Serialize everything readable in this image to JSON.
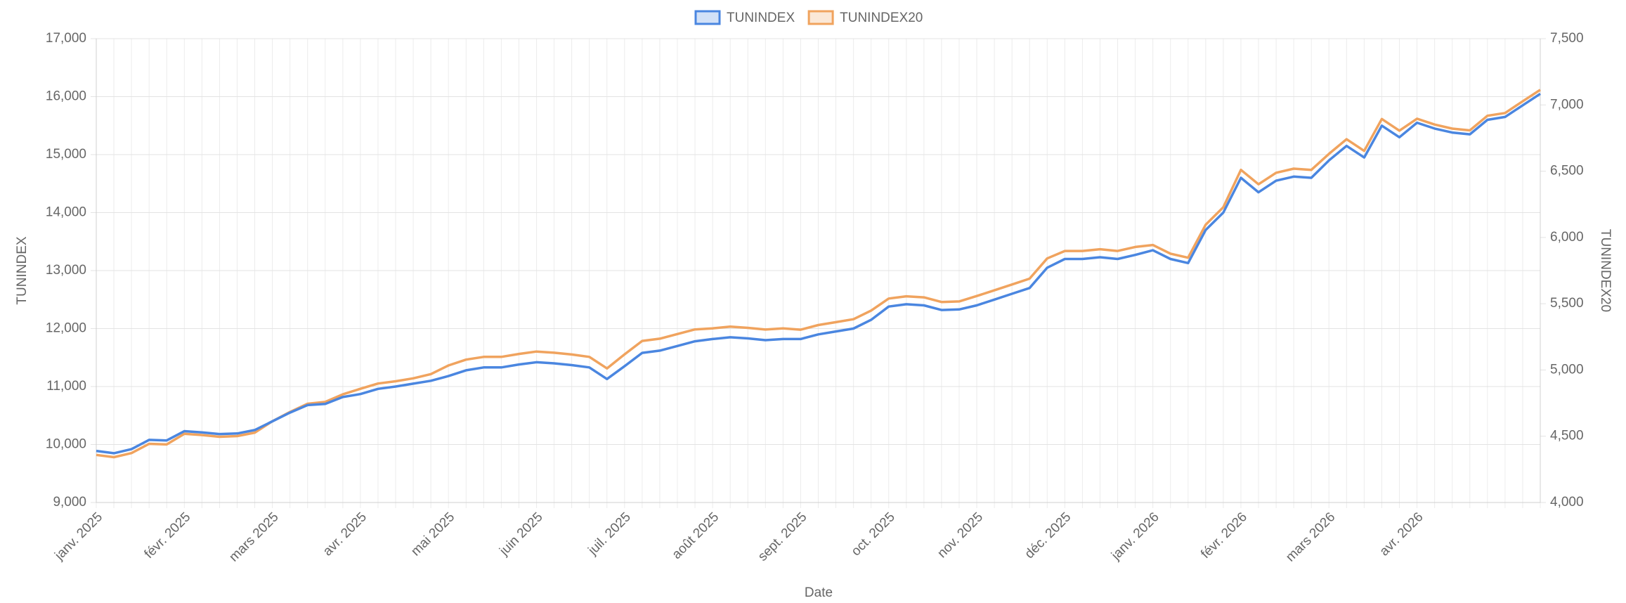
{
  "chart_data": {
    "type": "line",
    "x_label": "Date",
    "y_label": "TUNINDEX",
    "y2_label": "TUNINDEX20",
    "legend": "top",
    "grid": true,
    "categories": [
      "janv. 2025",
      null,
      null,
      null,
      null,
      "févr. 2025",
      null,
      null,
      null,
      null,
      "mars 2025",
      null,
      null,
      null,
      null,
      "avr. 2025",
      null,
      null,
      null,
      null,
      "mai 2025",
      null,
      null,
      null,
      null,
      "juin 2025",
      null,
      null,
      null,
      null,
      "juil. 2025",
      null,
      null,
      null,
      null,
      "août 2025",
      null,
      null,
      null,
      null,
      "sept. 2025",
      null,
      null,
      null,
      null,
      "oct. 2025",
      null,
      null,
      null,
      null,
      "nov. 2025",
      null,
      null,
      null,
      null,
      "déc. 2025",
      null,
      null,
      null,
      null,
      "janv. 2026",
      null,
      null,
      null,
      null,
      "févr. 2026",
      null,
      null,
      null,
      null,
      "mars 2026",
      null,
      null,
      null,
      null,
      "avr. 2026",
      null,
      null,
      null,
      null,
      null,
      null,
      null
    ],
    "ylim": [
      9000,
      17000
    ],
    "yticks": [
      {
        "value": 9000,
        "label": "9,000"
      },
      {
        "value": 10000,
        "label": "10,000"
      },
      {
        "value": 11000,
        "label": "11,000"
      },
      {
        "value": 12000,
        "label": "12,000"
      },
      {
        "value": 13000,
        "label": "13,000"
      },
      {
        "value": 14000,
        "label": "14,000"
      },
      {
        "value": 15000,
        "label": "15,000"
      },
      {
        "value": 16000,
        "label": "16,000"
      },
      {
        "value": 17000,
        "label": "17,000"
      }
    ],
    "y2lim": [
      4000,
      7500
    ],
    "y2ticks": [
      {
        "value": 4000,
        "label": "4,000"
      },
      {
        "value": 4500,
        "label": "4,500"
      },
      {
        "value": 5000,
        "label": "5,000"
      },
      {
        "value": 5500,
        "label": "5,500"
      },
      {
        "value": 6000,
        "label": "6,000"
      },
      {
        "value": 6500,
        "label": "6,500"
      },
      {
        "value": 7000,
        "label": "7,000"
      },
      {
        "value": 7500,
        "label": "7,500"
      }
    ],
    "series": [
      {
        "name": "TUNINDEX",
        "color": "#4a86e0",
        "axis": "y",
        "values": [
          9890,
          9850,
          9920,
          10080,
          10070,
          10230,
          10210,
          10180,
          10190,
          10250,
          10400,
          10550,
          10680,
          10700,
          10820,
          10870,
          10960,
          11000,
          11050,
          11100,
          11180,
          11280,
          11330,
          11330,
          11380,
          11420,
          11400,
          11370,
          11330,
          11130,
          11350,
          11580,
          11620,
          11700,
          11780,
          11820,
          11850,
          11830,
          11800,
          11820,
          11820,
          11900,
          11950,
          12000,
          12150,
          12380,
          12420,
          12400,
          12320,
          12330,
          12400,
          12500,
          12600,
          12700,
          13050,
          13200,
          13200,
          13230,
          13200,
          13270,
          13350,
          13200,
          13130,
          13700,
          14000,
          14600,
          14350,
          14550,
          14620,
          14600,
          14900,
          15150,
          14950,
          15500,
          15300,
          15550,
          15450,
          15380,
          15350,
          15600,
          15650,
          15850,
          16050
        ]
      },
      {
        "name": "TUNINDEX20",
        "color": "#f0a35e",
        "axis": "y2",
        "values": [
          4359,
          4342,
          4373,
          4443,
          4438,
          4518,
          4509,
          4496,
          4501,
          4527,
          4613,
          4683,
          4745,
          4759,
          4816,
          4858,
          4898,
          4915,
          4937,
          4969,
          5034,
          5078,
          5099,
          5099,
          5121,
          5139,
          5130,
          5117,
          5099,
          5012,
          5118,
          5219,
          5236,
          5271,
          5306,
          5314,
          5327,
          5318,
          5305,
          5314,
          5304,
          5339,
          5361,
          5383,
          5448,
          5539,
          5556,
          5548,
          5513,
          5517,
          5558,
          5601,
          5645,
          5689,
          5842,
          5898,
          5898,
          5911,
          5898,
          5928,
          5943,
          5878,
          5847,
          6096,
          6228,
          6510,
          6401,
          6488,
          6519,
          6510,
          6631,
          6741,
          6653,
          6894,
          6806,
          6896,
          6852,
          6821,
          6808,
          6918,
          6939,
          7027,
          7114
        ]
      }
    ]
  }
}
